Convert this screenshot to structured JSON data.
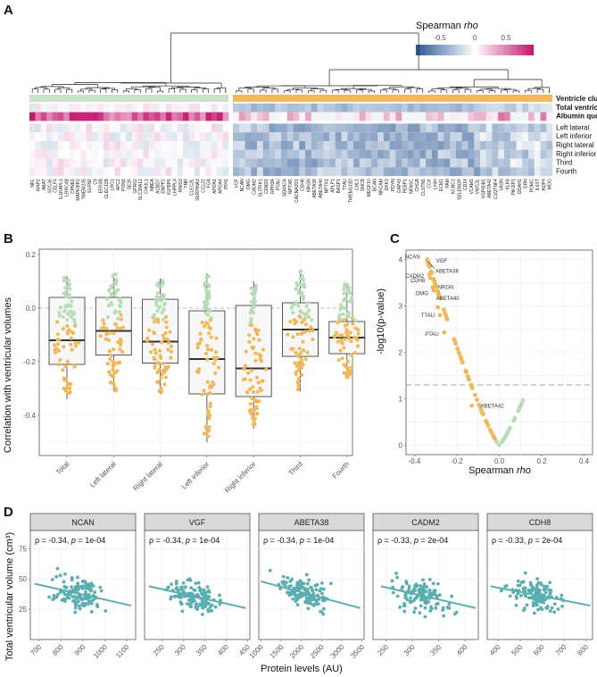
{
  "panels": {
    "A": "A",
    "B": "B",
    "C": "C",
    "D": "D"
  },
  "colors": {
    "green_cluster": "#c8e3c8",
    "orange_cluster": "#f2b95c",
    "negative": "#2c5a96",
    "positive": "#c2186f",
    "teal": "#5aaeb0",
    "green_point": "#b8dcb8",
    "orange_point": "#f1b85a"
  },
  "chart_data": [
    {
      "id": "A",
      "type": "heatmap",
      "legend": {
        "title": "Spearman",
        "title_italic": "rho",
        "ticks": [
          "-0.5",
          "0",
          "0.5"
        ],
        "range": [
          -0.8,
          0.8
        ]
      },
      "row_labels": [
        "Ventricle cluster",
        "Total ventricle",
        "Albumin quotient",
        "Left lateral",
        "Left inferior",
        "Right lateral",
        "Right inferior",
        "Third",
        "Fourth"
      ],
      "bold_rows": [
        "Ventricle cluster",
        "Total ventricle",
        "Albumin quotient"
      ],
      "cluster_green_genes": [
        "NFL",
        "MAP2",
        "ABAT",
        "SOC36",
        "CELF4",
        "IL1RAPL1",
        "LRRC4B",
        "CPNE6",
        "MAPK8IP2",
        "TMEM235",
        "ELFN2",
        "C9",
        "EFR3B",
        "CLEC12B",
        "LRG1",
        "APC2",
        "PON1",
        "SE26",
        "GPR62",
        "SLC39A12",
        "CHI3L1",
        "NBEA",
        "ACBD7",
        "ENPP2",
        "IGFBP6",
        "LHPPL4",
        "RIMS3",
        "TNR",
        "CLEC2L",
        "SERPINA3",
        "CCL22",
        "FGA",
        "APOA1",
        "APOA4",
        "ITIH1"
      ],
      "cluster_orange_genes": [
        "VGF",
        "NCAN",
        "OMG",
        "CADM2",
        "SLITRK1",
        "CEND1",
        "RPH3A",
        "PTAU",
        "SEMA7A",
        "NPTXR",
        "CACNA2D1",
        "CDH8",
        "NRGN",
        "ABETA38",
        "ABETA40",
        "NPTX1",
        "APLP1",
        "BASP1",
        "TTAU",
        "TMEM132D",
        "CHL1",
        "SNCB",
        "MEGF10",
        "BCAN",
        "NRCAM",
        "DKK3",
        "PDYN",
        "GAP43",
        "PEBP1",
        "NFASC",
        "CHGB",
        "CLSTN1",
        "CCK",
        "LY6H",
        "ECM1",
        "PAM",
        "KCNC1",
        "SELENOP",
        "CD14",
        "VCAM1",
        "VWC2L",
        "HSP90B1",
        "ABETA42",
        "C1QTNF4",
        "VASN",
        "KLK6",
        "PIK3IP1",
        "DDAH1",
        "GRN",
        "POMC",
        "IL6ST",
        "AQP4",
        "MOG"
      ]
    },
    {
      "id": "B",
      "type": "scatter",
      "subtype": "box-beeswarm",
      "ylabel": "Correlation with ventricular volumes",
      "ylim": [
        -0.55,
        0.22
      ],
      "yticks": [
        "0.2",
        "0.0",
        "-0.2",
        "-0.4"
      ],
      "ytick_values": [
        0.2,
        0.0,
        -0.2,
        -0.4
      ],
      "reference_line": 0.0,
      "categories": [
        "Total",
        "Left lateral",
        "Right lateral",
        "Left inferior",
        "Right inferior",
        "Third",
        "Fourth"
      ],
      "boxes": [
        {
          "q1": -0.21,
          "median": -0.12,
          "q3": 0.04,
          "min": -0.34,
          "max": 0.12
        },
        {
          "q1": -0.175,
          "median": -0.085,
          "q3": 0.04,
          "min": -0.31,
          "max": 0.13
        },
        {
          "q1": -0.205,
          "median": -0.125,
          "q3": 0.033,
          "min": -0.32,
          "max": 0.11
        },
        {
          "q1": -0.32,
          "median": -0.19,
          "q3": -0.01,
          "min": -0.5,
          "max": 0.13
        },
        {
          "q1": -0.33,
          "median": -0.225,
          "q3": 0.01,
          "min": -0.45,
          "max": 0.1
        },
        {
          "q1": -0.18,
          "median": -0.08,
          "q3": 0.02,
          "min": -0.31,
          "max": 0.14
        },
        {
          "q1": -0.17,
          "median": -0.11,
          "q3": -0.05,
          "min": -0.26,
          "max": 0.09
        }
      ]
    },
    {
      "id": "C",
      "type": "scatter",
      "xlabel": "Spearman",
      "xlabel_italic": "rho",
      "ylabel": "-log10(p-value)",
      "xlim": [
        -0.44,
        0.44
      ],
      "ylim": [
        -0.2,
        4.2
      ],
      "xticks": [
        "-0.4",
        "-0.2",
        "0.0",
        "0.2",
        "0.4"
      ],
      "xtick_values": [
        -0.4,
        -0.2,
        0.0,
        0.2,
        0.4
      ],
      "yticks": [
        "0",
        "1",
        "2",
        "3",
        "4"
      ],
      "ytick_values": [
        0,
        1,
        2,
        3,
        4
      ],
      "threshold": 1.3,
      "labeled_points": [
        {
          "label": "NCAN",
          "x": -0.34,
          "y": 4.0
        },
        {
          "label": "VGF",
          "x": -0.34,
          "y": 3.97
        },
        {
          "label": "ABETA38",
          "x": -0.335,
          "y": 3.9
        },
        {
          "label": "CADM2",
          "x": -0.33,
          "y": 3.68
        },
        {
          "label": "CDH8",
          "x": -0.325,
          "y": 3.6
        },
        {
          "label": "NRGN",
          "x": -0.315,
          "y": 3.4
        },
        {
          "label": "OMG",
          "x": -0.31,
          "y": 3.33
        },
        {
          "label": "ABETA40",
          "x": -0.29,
          "y": 2.97
        },
        {
          "label": "TTAU",
          "x": -0.28,
          "y": 2.8
        },
        {
          "label": "PTAU",
          "x": -0.26,
          "y": 2.43
        },
        {
          "label": "ABETA42",
          "x": -0.13,
          "y": 0.85
        }
      ]
    },
    {
      "id": "D",
      "type": "scatter",
      "ylabel": "Total ventricular volume (cm³)",
      "xlabel": "Protein levels (AU)",
      "ylim": [
        0,
        90
      ],
      "yticks": [
        "25",
        "50",
        "75"
      ],
      "ytick_values": [
        25,
        50,
        75
      ],
      "facets": [
        {
          "name": "NCAN",
          "rho": "-0.34",
          "p": "1e-04",
          "xlim": [
            660,
            1140
          ],
          "xticks": [
            "700",
            "800",
            "900",
            "1000",
            "1100"
          ],
          "xtick_values": [
            700,
            800,
            900,
            1000,
            1100
          ],
          "fit": [
            [
              680,
              46
            ],
            [
              1120,
              28
            ]
          ]
        },
        {
          "name": "VGF",
          "rho": "-0.34",
          "p": "1e-04",
          "xlim": [
            210,
            455
          ],
          "xticks": [
            "250",
            "300",
            "350",
            "400",
            "450"
          ],
          "xtick_values": [
            250,
            300,
            350,
            400,
            450
          ],
          "fit": [
            [
              220,
              44
            ],
            [
              445,
              26
            ]
          ]
        },
        {
          "name": "ABETA38",
          "rho": "-0.34",
          "p": "1e-04",
          "xlim": [
            950,
            3550
          ],
          "xticks": [
            "1000",
            "1500",
            "2000",
            "2500",
            "3000",
            "3500"
          ],
          "xtick_values": [
            1000,
            1500,
            2000,
            2500,
            3000,
            3500
          ],
          "fit": [
            [
              1000,
              48
            ],
            [
              3450,
              26
            ]
          ]
        },
        {
          "name": "CADM2",
          "rho": "-0.33",
          "p": "2e-04",
          "xlim": [
            225,
            425
          ],
          "xticks": [
            "250",
            "300",
            "350",
            "400"
          ],
          "xtick_values": [
            250,
            300,
            350,
            400
          ],
          "fit": [
            [
              240,
              44
            ],
            [
              420,
              26
            ]
          ]
        },
        {
          "name": "CDH8",
          "rho": "-0.33",
          "p": "2e-04",
          "xlim": [
            350,
            830
          ],
          "xticks": [
            "400",
            "500",
            "600",
            "700",
            "800"
          ],
          "xtick_values": [
            400,
            500,
            600,
            700,
            800
          ],
          "fit": [
            [
              365,
              44
            ],
            [
              820,
              28
            ]
          ]
        }
      ]
    }
  ]
}
